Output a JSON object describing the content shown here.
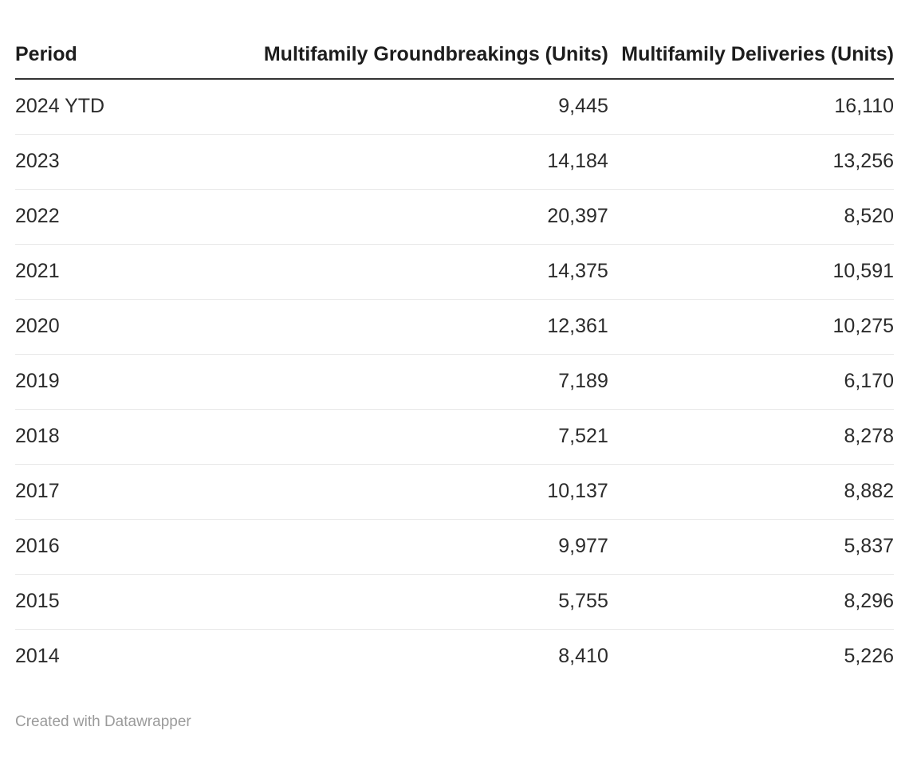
{
  "colors": {
    "background": "#ffffff",
    "header_text": "#1d1d1d",
    "body_text": "#2b2b2b",
    "header_border": "#333333",
    "row_divider": "#e8e8e8",
    "attribution_text": "#9b9b9b"
  },
  "table": {
    "columns": [
      {
        "label": "Period",
        "align": "left"
      },
      {
        "label": "Multifamily Groundbreakings (Units)",
        "align": "right"
      },
      {
        "label": "Multifamily Deliveries (Units)",
        "align": "right"
      }
    ],
    "rows": [
      [
        "2024 YTD",
        "9,445",
        "16,110"
      ],
      [
        "2023",
        "14,184",
        "13,256"
      ],
      [
        "2022",
        "20,397",
        "8,520"
      ],
      [
        "2021",
        "14,375",
        "10,591"
      ],
      [
        "2020",
        "12,361",
        "10,275"
      ],
      [
        "2019",
        "7,189",
        "6,170"
      ],
      [
        "2018",
        "7,521",
        "8,278"
      ],
      [
        "2017",
        "10,137",
        "8,882"
      ],
      [
        "2016",
        "9,977",
        "5,837"
      ],
      [
        "2015",
        "5,755",
        "8,296"
      ],
      [
        "2014",
        "8,410",
        "5,226"
      ]
    ]
  },
  "attribution": "Created with Datawrapper",
  "chart_data": {
    "type": "table",
    "title": "",
    "columns": [
      "Period",
      "Multifamily Groundbreakings (Units)",
      "Multifamily Deliveries (Units)"
    ],
    "rows": [
      {
        "period": "2024 YTD",
        "groundbreakings_units": 9445,
        "deliveries_units": 16110
      },
      {
        "period": "2023",
        "groundbreakings_units": 14184,
        "deliveries_units": 13256
      },
      {
        "period": "2022",
        "groundbreakings_units": 20397,
        "deliveries_units": 8520
      },
      {
        "period": "2021",
        "groundbreakings_units": 14375,
        "deliveries_units": 10591
      },
      {
        "period": "2020",
        "groundbreakings_units": 12361,
        "deliveries_units": 10275
      },
      {
        "period": "2019",
        "groundbreakings_units": 7189,
        "deliveries_units": 6170
      },
      {
        "period": "2018",
        "groundbreakings_units": 7521,
        "deliveries_units": 8278
      },
      {
        "period": "2017",
        "groundbreakings_units": 10137,
        "deliveries_units": 8882
      },
      {
        "period": "2016",
        "groundbreakings_units": 9977,
        "deliveries_units": 5837
      },
      {
        "period": "2015",
        "groundbreakings_units": 5755,
        "deliveries_units": 8296
      },
      {
        "period": "2014",
        "groundbreakings_units": 8410,
        "deliveries_units": 5226
      }
    ],
    "layout_hints": {
      "numeric_columns_align": "right",
      "header_rule": "2px solid dark",
      "row_dividers": true,
      "grid": false
    }
  }
}
